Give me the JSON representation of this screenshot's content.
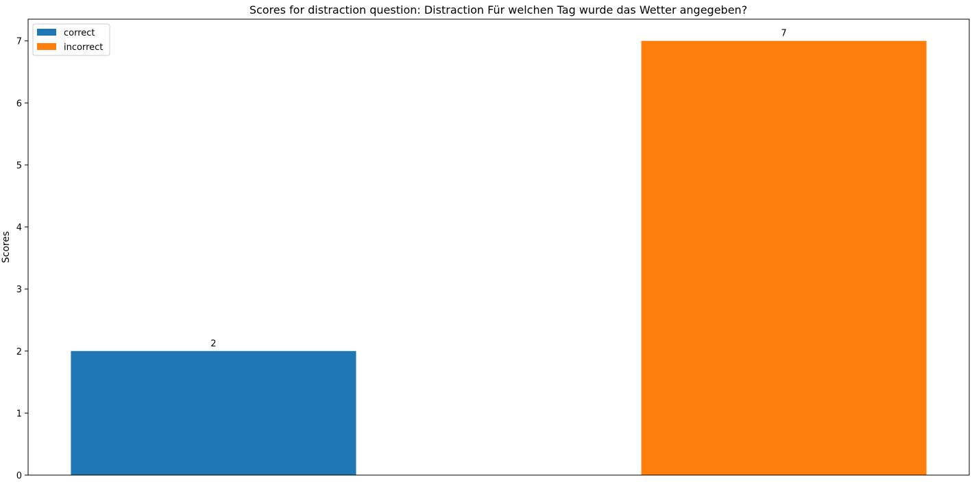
{
  "chart_data": {
    "type": "bar",
    "title": "Scores for distraction question: Distraction Für welchen Tag wurde das Wetter angegeben?",
    "xlabel": "",
    "ylabel": "Scores",
    "categories": [
      "correct",
      "incorrect"
    ],
    "values": [
      2,
      7
    ],
    "data_labels": [
      "2",
      "7"
    ],
    "colors": [
      "#1f77b4",
      "#ff7f0e"
    ],
    "ylim": [
      0,
      7.35
    ],
    "yticks": [
      0,
      1,
      2,
      3,
      4,
      5,
      6,
      7
    ],
    "ytick_labels": [
      "0",
      "1",
      "2",
      "3",
      "4",
      "5",
      "6",
      "7"
    ],
    "grid": false,
    "legend": {
      "placement": "top-left",
      "entries": [
        {
          "label": "correct",
          "color": "#1f77b4"
        },
        {
          "label": "incorrect",
          "color": "#ff7f0e"
        }
      ]
    }
  }
}
